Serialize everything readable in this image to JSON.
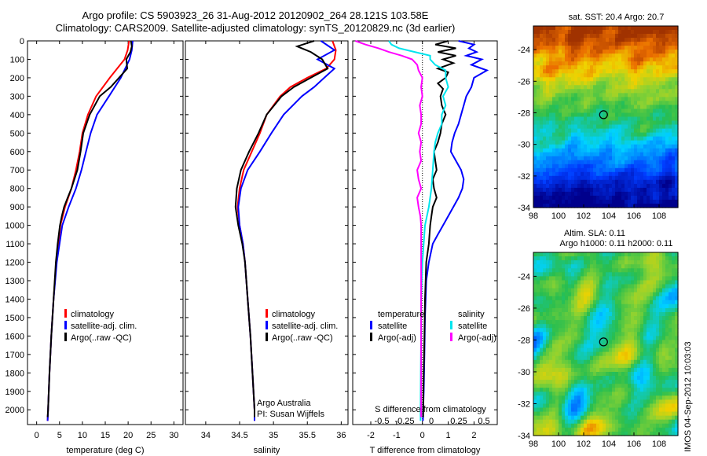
{
  "header": {
    "line1": "Argo profile: CS 5903923_26 31-Aug-2012 20120902_264 28.121S 103.58E",
    "line2": "Climatology: CARS2009. Satellite-adjusted climatology: synTS_20120829.nc (3d earlier)"
  },
  "footer_stamp": "IMOS 04-Sep-2012 10:03:03",
  "credit": {
    "line1": "Argo Australia",
    "line2": "PI: Susan Wijffels"
  },
  "colors": {
    "climatology": "#ff0000",
    "satellite": "#0000ff",
    "argo": "#000000",
    "sal_satellite": "#00e5ee",
    "sal_argo": "#ff00ff"
  },
  "chart_data": [
    {
      "type": "line",
      "name": "temperature profile",
      "xlabel": "temperature (deg C)",
      "xlim": [
        -2,
        32
      ],
      "ylim": [
        0,
        2080
      ],
      "xticks": [
        0,
        5,
        10,
        15,
        20,
        25,
        30
      ],
      "yticks": [
        0,
        100,
        200,
        300,
        400,
        500,
        600,
        700,
        800,
        900,
        1000,
        1100,
        1200,
        1300,
        1400,
        1500,
        1600,
        1700,
        1800,
        1900,
        2000
      ],
      "legend": [
        "climatology",
        "satellite-adj. clim.",
        "Argo(..raw -QC)"
      ],
      "series": [
        {
          "name": "climatology",
          "color": "#ff0000",
          "depth": [
            0,
            50,
            100,
            200,
            300,
            400,
            500,
            600,
            700,
            800,
            900,
            1000,
            1200,
            1400,
            1600,
            1800,
            2000,
            2060
          ],
          "values": [
            20.2,
            19.9,
            19.2,
            16.0,
            13.0,
            11.2,
            10.0,
            9.4,
            8.6,
            7.6,
            6.2,
            5.2,
            4.3,
            3.7,
            3.2,
            2.8,
            2.5,
            2.4
          ]
        },
        {
          "name": "satellite-adj. clim.",
          "color": "#0000ff",
          "depth": [
            0,
            50,
            100,
            200,
            300,
            400,
            500,
            600,
            700,
            800,
            900,
            1000,
            1200,
            1400,
            1600,
            1800,
            2000,
            2060
          ],
          "values": [
            21.0,
            20.8,
            20.3,
            18.4,
            15.8,
            13.2,
            11.8,
            10.8,
            9.8,
            8.6,
            7.0,
            5.6,
            4.4,
            3.7,
            3.2,
            2.8,
            2.5,
            2.4
          ]
        },
        {
          "name": "Argo(..raw -QC)",
          "color": "#000000",
          "depth": [
            0,
            30,
            60,
            100,
            150,
            200,
            250,
            300,
            400,
            500,
            600,
            700,
            800,
            850,
            900,
            950,
            1000,
            1100,
            1200,
            1400,
            1600,
            1800,
            2000,
            2040
          ],
          "values": [
            20.6,
            20.8,
            20.5,
            19.6,
            19.8,
            18.0,
            16.2,
            13.8,
            11.6,
            10.2,
            9.6,
            8.9,
            7.6,
            6.8,
            6.0,
            5.5,
            5.1,
            4.6,
            4.2,
            3.7,
            3.2,
            2.8,
            2.5,
            2.4
          ]
        }
      ]
    },
    {
      "type": "line",
      "name": "salinity profile",
      "xlabel": "salinity",
      "xlim": [
        33.7,
        36.1
      ],
      "ylim": [
        0,
        2080
      ],
      "xticks": [
        34,
        34.5,
        35,
        35.5,
        36
      ],
      "legend": [
        "climatology",
        "satellite-adj. clim.",
        "Argo(..raw -QC)"
      ],
      "series": [
        {
          "name": "climatology",
          "color": "#ff0000",
          "depth": [
            0,
            50,
            100,
            150,
            200,
            250,
            300,
            400,
            500,
            600,
            700,
            800,
            900,
            1000,
            1100,
            1200,
            1400,
            1600,
            1800,
            2000,
            2060
          ],
          "values": [
            35.87,
            35.92,
            35.9,
            35.78,
            35.5,
            35.25,
            35.1,
            34.9,
            34.8,
            34.68,
            34.56,
            34.5,
            34.47,
            34.5,
            34.55,
            34.58,
            34.62,
            34.66,
            34.69,
            34.72,
            34.72
          ]
        },
        {
          "name": "satellite-adj. clim.",
          "color": "#0000ff",
          "depth": [
            0,
            50,
            100,
            150,
            200,
            250,
            300,
            400,
            500,
            600,
            700,
            800,
            900,
            1000,
            1100,
            1200,
            1400,
            1600,
            1800,
            2000,
            2060
          ],
          "values": [
            35.7,
            35.9,
            35.65,
            35.9,
            35.75,
            35.6,
            35.42,
            35.15,
            34.97,
            34.8,
            34.62,
            34.52,
            34.48,
            34.5,
            34.55,
            34.58,
            34.62,
            34.66,
            34.69,
            34.72,
            34.72
          ]
        },
        {
          "name": "Argo(..raw -QC)",
          "color": "#000000",
          "depth": [
            0,
            30,
            60,
            100,
            150,
            200,
            250,
            300,
            400,
            500,
            600,
            700,
            800,
            900,
            1000,
            1100,
            1200,
            1400,
            1600,
            1800,
            2000,
            2040
          ],
          "values": [
            35.6,
            35.35,
            35.55,
            35.72,
            35.8,
            35.55,
            35.3,
            35.12,
            34.9,
            34.78,
            34.64,
            34.52,
            34.46,
            34.44,
            34.48,
            34.54,
            34.58,
            34.62,
            34.66,
            34.69,
            34.72,
            34.72
          ]
        }
      ]
    },
    {
      "type": "line",
      "name": "difference from climatology",
      "xlabel": "T difference from climatology",
      "xlabel_top": "S difference from climatology",
      "xlim": [
        -2.7,
        2.9
      ],
      "ylim": [
        0,
        2080
      ],
      "xticks": [
        -2,
        -1,
        0,
        1,
        2
      ],
      "top_ticks": [
        "-0.5",
        "-0.25",
        "0",
        "0.25",
        "0.5"
      ],
      "legend_headers": [
        "temperature",
        "salinity"
      ],
      "legend": [
        "satellite",
        "Argo(-adj)",
        "satellite",
        "Argo(-adj)"
      ],
      "series": [
        {
          "name": "temperature satellite",
          "color": "#0000ff",
          "depth": [
            0,
            20,
            40,
            60,
            80,
            100,
            130,
            160,
            200,
            250,
            300,
            350,
            400,
            450,
            500,
            550,
            600,
            650,
            700,
            750,
            800,
            850,
            900,
            950,
            1000,
            1050,
            1100,
            1200,
            1300,
            1500,
            1700,
            1900,
            2000,
            2060
          ],
          "values": [
            1.4,
            2.0,
            1.8,
            2.1,
            1.7,
            2.3,
            1.9,
            2.5,
            2.0,
            1.9,
            1.7,
            1.6,
            1.5,
            1.4,
            1.25,
            1.15,
            1.1,
            1.3,
            1.5,
            1.6,
            1.55,
            1.4,
            1.2,
            1.0,
            0.8,
            0.6,
            0.4,
            0.25,
            0.15,
            0.1,
            0.08,
            0.05,
            0.03,
            0.02
          ]
        },
        {
          "name": "temperature Argo(-adj)",
          "color": "#000000",
          "depth": [
            0,
            20,
            40,
            60,
            80,
            100,
            120,
            150,
            170,
            200,
            230,
            260,
            300,
            350,
            400,
            450,
            500,
            550,
            600,
            650,
            700,
            750,
            800,
            850,
            900,
            950,
            1000,
            1100,
            1200,
            1400,
            1600,
            1800,
            2000,
            2040
          ],
          "values": [
            1.0,
            0.5,
            1.3,
            0.6,
            1.3,
            0.8,
            1.2,
            0.6,
            1.0,
            0.9,
            0.6,
            0.8,
            0.7,
            0.75,
            0.9,
            0.75,
            0.7,
            0.6,
            0.45,
            0.5,
            0.55,
            0.4,
            0.45,
            0.55,
            0.4,
            0.35,
            0.3,
            0.25,
            0.15,
            0.1,
            0.08,
            0.05,
            0.03,
            0.03
          ]
        },
        {
          "name": "salinity satellite",
          "color": "#00e5ee",
          "depth": [
            0,
            20,
            40,
            60,
            80,
            100,
            130,
            160,
            200,
            250,
            300,
            350,
            400,
            450,
            500,
            550,
            600,
            700,
            800,
            900,
            1000,
            1200,
            1400,
            1600,
            1800,
            2000,
            2060
          ],
          "values": [
            -1.3,
            -1.2,
            -0.9,
            -0.3,
            0.3,
            0.3,
            0.5,
            0.9,
            0.9,
            1.0,
            0.8,
            0.9,
            0.75,
            0.75,
            0.6,
            0.5,
            0.45,
            0.4,
            0.35,
            0.25,
            0.1,
            0.0,
            -0.05,
            -0.05,
            -0.06,
            -0.07,
            -0.07
          ]
        },
        {
          "name": "salinity Argo(-adj)",
          "color": "#ff00ff",
          "depth": [
            0,
            20,
            40,
            60,
            80,
            100,
            130,
            160,
            200,
            250,
            300,
            350,
            400,
            450,
            500,
            550,
            600,
            650,
            700,
            750,
            800,
            850,
            900,
            950,
            1000,
            1100,
            1200,
            1400,
            1600,
            1800,
            2000,
            2040
          ],
          "values": [
            -2.6,
            -2.2,
            -1.7,
            -1.3,
            -0.8,
            -0.4,
            -0.2,
            -0.15,
            0.0,
            -0.05,
            0.0,
            -0.1,
            -0.05,
            -0.05,
            -0.15,
            -0.05,
            -0.1,
            -0.05,
            -0.2,
            -0.15,
            -0.05,
            -0.2,
            -0.15,
            -0.08,
            -0.05,
            -0.05,
            -0.05,
            -0.05,
            -0.05,
            -0.05,
            -0.05,
            -0.05
          ]
        }
      ]
    },
    {
      "type": "heatmap",
      "name": "sat SST map",
      "title": "sat. SST: 20.4  Argo: 20.7",
      "xlim": [
        98,
        109.5
      ],
      "ylim": [
        -34,
        -22.5
      ],
      "xticks": [
        98,
        100,
        102,
        104,
        106,
        108
      ],
      "yticks": [
        -24,
        -26,
        -28,
        -30,
        -32,
        -34
      ],
      "marker": {
        "lon": 103.58,
        "lat": -28.121
      }
    },
    {
      "type": "heatmap",
      "name": "altimetry SLA map",
      "title_line1": "Altim. SLA: 0.11",
      "title_line2": "Argo h1000: 0.11 h2000: 0.11",
      "xlim": [
        98,
        109.5
      ],
      "ylim": [
        -34,
        -22.5
      ],
      "xticks": [
        98,
        100,
        102,
        104,
        106,
        108
      ],
      "yticks": [
        -24,
        -26,
        -28,
        -30,
        -32,
        -34
      ],
      "marker": {
        "lon": 103.58,
        "lat": -28.121
      }
    }
  ]
}
